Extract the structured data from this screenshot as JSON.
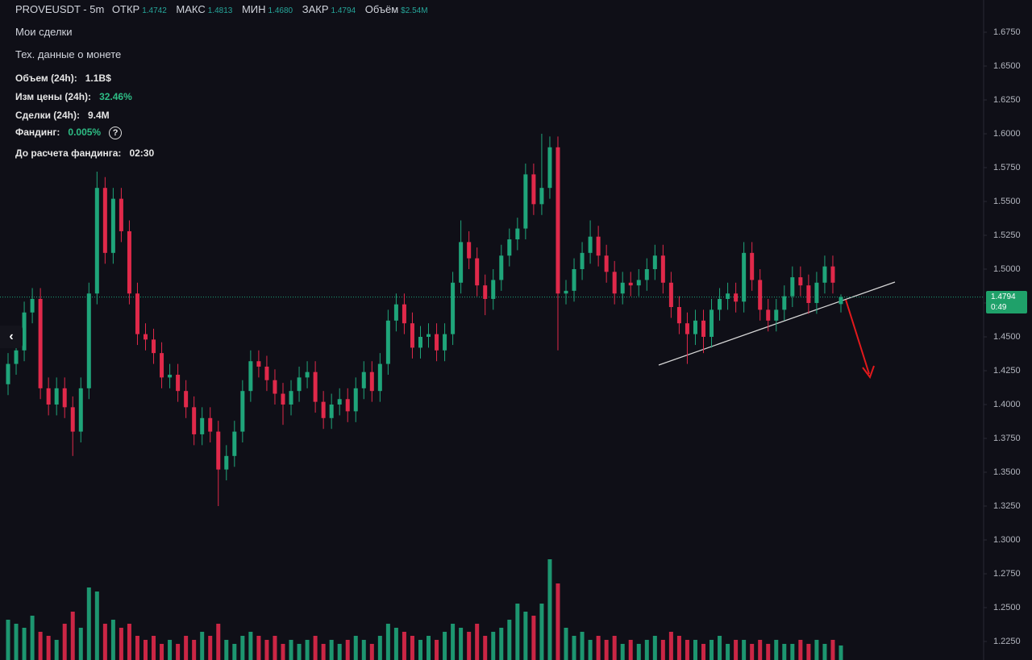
{
  "header": {
    "symbol": "PROVEUSDT - 5m",
    "open_label": "ОТКР",
    "open": "1.4742",
    "high_label": "МАКС",
    "high": "1.4813",
    "low_label": "МИН",
    "low": "1.4680",
    "close_label": "ЗАКР",
    "close": "1.4794",
    "volume_label": "Объём",
    "volume": "$2.54M"
  },
  "info": {
    "my_trades": "Мои сделки",
    "coin_data": "Тех. данные о монете",
    "rows": [
      [
        "Объем (24h):",
        "1.1B$"
      ],
      [
        "Изм цены (24h):",
        "32.46%"
      ],
      [
        "Сделки (24h):",
        "9.4M"
      ],
      [
        "Фандинг:",
        "0.005%"
      ],
      [
        "До расчета фандинга:",
        "02:30"
      ]
    ],
    "help": "?",
    "price_label": "1.4794",
    "timer": "0:49"
  },
  "chart_data": {
    "type": "candlestick",
    "up_color": "#1fa57a",
    "down_color": "#e0294a",
    "ylim": [
      1.2113,
      1.6988
    ],
    "yticks": [
      {
        "value": 1.225,
        "label": "1.2250"
      },
      {
        "value": 1.25,
        "label": "1.2500"
      },
      {
        "value": 1.275,
        "label": "1.2750"
      },
      {
        "value": 1.3,
        "label": "1.3000"
      },
      {
        "value": 1.325,
        "label": "1.3250"
      },
      {
        "value": 1.35,
        "label": "1.3500"
      },
      {
        "value": 1.375,
        "label": "1.3750"
      },
      {
        "value": 1.4,
        "label": "1.4000"
      },
      {
        "value": 1.425,
        "label": "1.4250"
      },
      {
        "value": 1.45,
        "label": "1.4500"
      },
      {
        "value": 1.475,
        "label": "1.4750"
      },
      {
        "value": 1.5,
        "label": "1.5000"
      },
      {
        "value": 1.525,
        "label": "1.5250"
      },
      {
        "value": 1.55,
        "label": "1.5500"
      },
      {
        "value": 1.575,
        "label": "1.5750"
      },
      {
        "value": 1.6,
        "label": "1.6000"
      },
      {
        "value": 1.625,
        "label": "1.6250"
      },
      {
        "value": 1.65,
        "label": "1.6500"
      },
      {
        "value": 1.675,
        "label": "1.6750"
      }
    ],
    "open": [
      1.415,
      1.43,
      1.44,
      1.468,
      1.478,
      1.412,
      1.4,
      1.412,
      1.398,
      1.38,
      1.412,
      1.482,
      1.56,
      1.512,
      1.552,
      1.528,
      1.482,
      1.452,
      1.448,
      1.438,
      1.42,
      1.422,
      1.41,
      1.398,
      1.378,
      1.39,
      1.38,
      1.352,
      1.362,
      1.38,
      1.41,
      1.432,
      1.428,
      1.418,
      1.408,
      1.4,
      1.41,
      1.42,
      1.424,
      1.402,
      1.39,
      1.4,
      1.404,
      1.395,
      1.412,
      1.424,
      1.41,
      1.43,
      1.462,
      1.474,
      1.46,
      1.442,
      1.45,
      1.452,
      1.44,
      1.452,
      1.49,
      1.52,
      1.508,
      1.488,
      1.478,
      1.492,
      1.51,
      1.522,
      1.53,
      1.57,
      1.548,
      1.56,
      1.59,
      1.482,
      1.484,
      1.5,
      1.512,
      1.524,
      1.51,
      1.498,
      1.482,
      1.49,
      1.488,
      1.492,
      1.5,
      1.51,
      1.49,
      1.472,
      1.46,
      1.452,
      1.462,
      1.45,
      1.47,
      1.478,
      1.482,
      1.476,
      1.512,
      1.492,
      1.47,
      1.462,
      1.47,
      1.48,
      1.494,
      1.488,
      1.475,
      1.49,
      1.502,
      1.4742
    ],
    "high": [
      1.438,
      1.448,
      1.476,
      1.486,
      1.486,
      1.42,
      1.42,
      1.42,
      1.406,
      1.42,
      1.49,
      1.572,
      1.568,
      1.56,
      1.56,
      1.536,
      1.49,
      1.46,
      1.456,
      1.446,
      1.43,
      1.43,
      1.418,
      1.406,
      1.398,
      1.398,
      1.388,
      1.37,
      1.388,
      1.418,
      1.44,
      1.44,
      1.436,
      1.426,
      1.416,
      1.418,
      1.428,
      1.432,
      1.432,
      1.41,
      1.408,
      1.412,
      1.412,
      1.42,
      1.432,
      1.432,
      1.438,
      1.47,
      1.482,
      1.482,
      1.468,
      1.458,
      1.46,
      1.46,
      1.46,
      1.498,
      1.536,
      1.528,
      1.516,
      1.496,
      1.5,
      1.518,
      1.53,
      1.538,
      1.578,
      1.578,
      1.6,
      1.598,
      1.598,
      1.492,
      1.508,
      1.52,
      1.536,
      1.532,
      1.518,
      1.506,
      1.498,
      1.498,
      1.5,
      1.508,
      1.518,
      1.518,
      1.498,
      1.48,
      1.468,
      1.47,
      1.47,
      1.478,
      1.486,
      1.49,
      1.49,
      1.52,
      1.52,
      1.5,
      1.478,
      1.478,
      1.488,
      1.502,
      1.502,
      1.496,
      1.498,
      1.51,
      1.51,
      1.4813
    ],
    "low": [
      1.407,
      1.422,
      1.432,
      1.46,
      1.404,
      1.392,
      1.392,
      1.39,
      1.362,
      1.372,
      1.404,
      1.474,
      1.504,
      1.504,
      1.52,
      1.474,
      1.444,
      1.44,
      1.43,
      1.412,
      1.412,
      1.402,
      1.39,
      1.37,
      1.37,
      1.372,
      1.325,
      1.344,
      1.354,
      1.372,
      1.402,
      1.42,
      1.41,
      1.4,
      1.385,
      1.392,
      1.402,
      1.412,
      1.394,
      1.382,
      1.382,
      1.392,
      1.387,
      1.387,
      1.404,
      1.402,
      1.402,
      1.422,
      1.454,
      1.452,
      1.434,
      1.434,
      1.442,
      1.432,
      1.432,
      1.444,
      1.482,
      1.5,
      1.48,
      1.466,
      1.47,
      1.484,
      1.502,
      1.514,
      1.522,
      1.54,
      1.54,
      1.552,
      1.44,
      1.474,
      1.476,
      1.492,
      1.504,
      1.502,
      1.49,
      1.474,
      1.474,
      1.48,
      1.48,
      1.484,
      1.492,
      1.482,
      1.464,
      1.452,
      1.43,
      1.444,
      1.438,
      1.442,
      1.462,
      1.47,
      1.468,
      1.468,
      1.484,
      1.462,
      1.454,
      1.454,
      1.462,
      1.472,
      1.48,
      1.467,
      1.467,
      1.482,
      1.482,
      1.468
    ],
    "close": [
      1.43,
      1.44,
      1.468,
      1.478,
      1.412,
      1.4,
      1.412,
      1.398,
      1.38,
      1.412,
      1.482,
      1.56,
      1.512,
      1.552,
      1.528,
      1.482,
      1.452,
      1.448,
      1.438,
      1.42,
      1.422,
      1.41,
      1.398,
      1.378,
      1.39,
      1.38,
      1.352,
      1.362,
      1.38,
      1.41,
      1.432,
      1.428,
      1.418,
      1.408,
      1.4,
      1.41,
      1.42,
      1.424,
      1.402,
      1.39,
      1.4,
      1.404,
      1.395,
      1.412,
      1.424,
      1.41,
      1.43,
      1.462,
      1.474,
      1.46,
      1.442,
      1.45,
      1.452,
      1.44,
      1.452,
      1.49,
      1.52,
      1.508,
      1.488,
      1.478,
      1.492,
      1.51,
      1.522,
      1.53,
      1.57,
      1.548,
      1.56,
      1.59,
      1.482,
      1.484,
      1.5,
      1.512,
      1.524,
      1.51,
      1.498,
      1.482,
      1.49,
      1.488,
      1.492,
      1.5,
      1.51,
      1.49,
      1.472,
      1.46,
      1.452,
      1.462,
      1.45,
      1.47,
      1.478,
      1.482,
      1.476,
      1.512,
      1.492,
      1.47,
      1.462,
      1.47,
      1.48,
      1.494,
      1.488,
      1.475,
      1.49,
      1.502,
      1.49,
      1.4794
    ],
    "volume": [
      50,
      45,
      40,
      55,
      35,
      30,
      25,
      45,
      60,
      40,
      90,
      85,
      45,
      50,
      40,
      45,
      30,
      25,
      30,
      20,
      25,
      20,
      30,
      25,
      35,
      30,
      45,
      25,
      20,
      30,
      35,
      30,
      25,
      30,
      20,
      25,
      20,
      25,
      30,
      20,
      25,
      20,
      25,
      30,
      25,
      20,
      30,
      45,
      40,
      35,
      30,
      25,
      30,
      25,
      35,
      45,
      40,
      35,
      45,
      30,
      35,
      40,
      50,
      70,
      60,
      55,
      70,
      125,
      95,
      40,
      30,
      35,
      25,
      30,
      25,
      30,
      20,
      25,
      20,
      25,
      30,
      25,
      35,
      30,
      25,
      25,
      20,
      25,
      30,
      20,
      25,
      25,
      20,
      25,
      20,
      25,
      20,
      20,
      25,
      20,
      25,
      20,
      25,
      18
    ]
  }
}
